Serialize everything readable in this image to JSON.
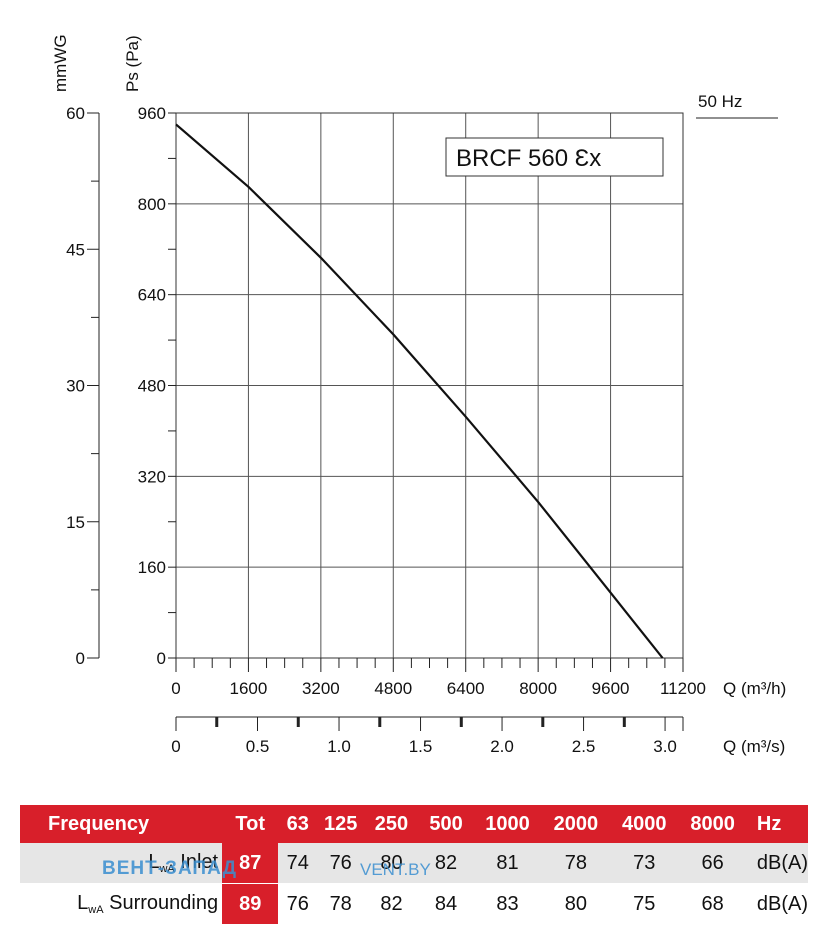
{
  "chart_data": {
    "type": "line",
    "title": "BRCF 560 Ex",
    "model_name": "BRCF 560 ",
    "model_ex": "Ɛx",
    "frequency_label": "50 Hz",
    "xlabel": "Q (m³/h)",
    "xlabel2": "Q (m³/s)",
    "ylabel": "Ps (Pa)",
    "ylabel2": "mmWG",
    "xlim": [
      0,
      11200
    ],
    "ylim": [
      0,
      960
    ],
    "x_ticks": [
      "0",
      "1600",
      "3200",
      "4800",
      "6400",
      "8000",
      "9600",
      "11200"
    ],
    "x_tick_values": [
      0,
      1600,
      3200,
      4800,
      6400,
      8000,
      9600,
      11200
    ],
    "x2_ticks": [
      "0",
      "0.5",
      "1.0",
      "1.5",
      "2.0",
      "2.5",
      "3.0"
    ],
    "x2_tick_values": [
      0,
      0.5,
      1.0,
      1.5,
      2.0,
      2.5,
      3.0
    ],
    "x2lim": [
      0,
      3.11
    ],
    "y_ticks": [
      "0",
      "160",
      "320",
      "480",
      "640",
      "800",
      "960"
    ],
    "y_tick_values": [
      0,
      160,
      320,
      480,
      640,
      800,
      960
    ],
    "y2_ticks": [
      "0",
      "15",
      "30",
      "45",
      "60"
    ],
    "y2_tick_values": [
      0,
      15,
      30,
      45,
      60
    ],
    "y2lim": [
      0,
      60
    ],
    "grid": true,
    "series": [
      {
        "name": "BRCF 560 Ex",
        "x": [
          0,
          1600,
          3200,
          4800,
          6400,
          8000,
          9600,
          10750
        ],
        "y": [
          940,
          830,
          705,
          570,
          425,
          275,
          115,
          0
        ]
      }
    ]
  },
  "sound_table": {
    "headers": [
      "Frequency",
      "Tot",
      "63",
      "125",
      "250",
      "500",
      "1000",
      "2000",
      "4000",
      "8000",
      "Hz"
    ],
    "rows": [
      {
        "label_main": "L",
        "label_sub": "wA",
        "label_rest": " Inlet",
        "values": [
          "87",
          "74",
          "76",
          "80",
          "82",
          "81",
          "78",
          "73",
          "66"
        ],
        "unit": "dB(A)"
      },
      {
        "label_main": "L",
        "label_sub": "wA",
        "label_rest": " Surrounding",
        "values": [
          "89",
          "76",
          "78",
          "82",
          "84",
          "83",
          "80",
          "75",
          "68"
        ],
        "unit": "dB(A)"
      }
    ]
  },
  "watermark": {
    "text": "ВЕНТ-ЗАПАД",
    "text2": "VENT.BY"
  }
}
